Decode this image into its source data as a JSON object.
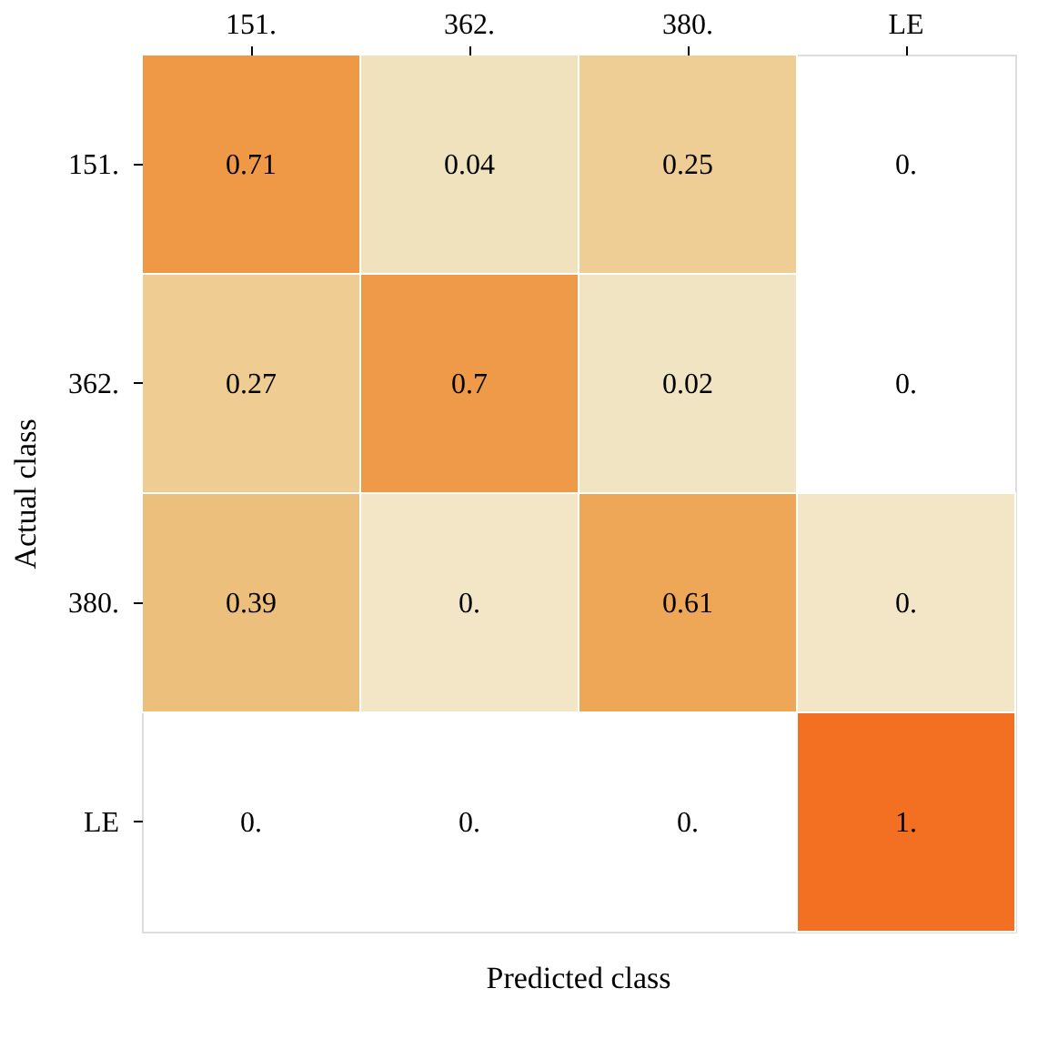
{
  "chart_data": {
    "type": "heatmap",
    "xlabel": "Predicted class",
    "ylabel": "Actual class",
    "categories": [
      "151.",
      "362.",
      "380.",
      "LE"
    ],
    "y_categories": [
      "151.",
      "362.",
      "380.",
      "LE"
    ],
    "cells": [
      [
        0.71,
        0.04,
        0.25,
        null
      ],
      [
        0.27,
        0.7,
        0.02,
        null
      ],
      [
        0.39,
        0,
        0.61,
        0
      ],
      [
        null,
        null,
        null,
        1
      ]
    ],
    "cell_labels": [
      [
        "0.71",
        "0.04",
        "0.25",
        "0."
      ],
      [
        "0.27",
        "0.7",
        "0.02",
        "0."
      ],
      [
        "0.39",
        "0.",
        "0.61",
        "0."
      ],
      [
        "0.",
        "0.",
        "0.",
        "1."
      ]
    ],
    "colors": [
      "#f2e6c6",
      "#f36f21"
    ]
  }
}
